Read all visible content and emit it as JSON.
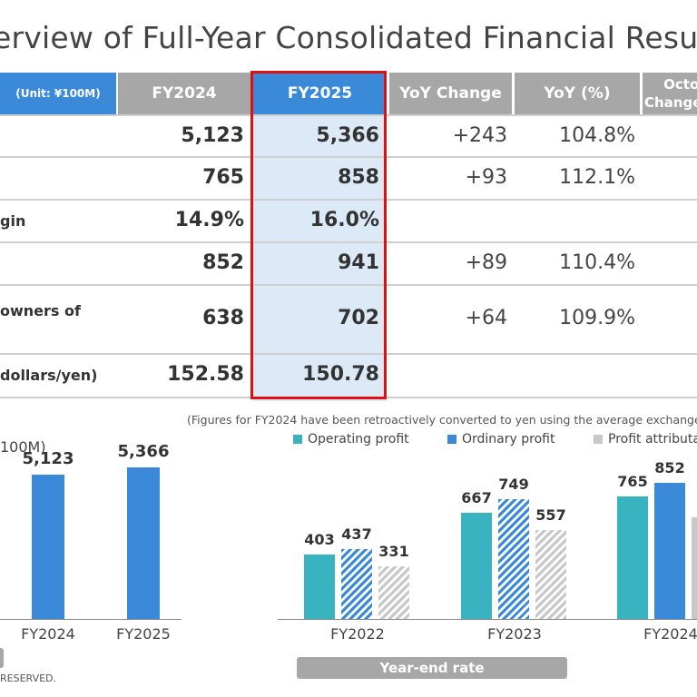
{
  "title": "erview of Full-Year Consolidated Financial Resu",
  "table": {
    "unit_header": "(Unit: ¥100M)",
    "col_fy2024": "FY2024",
    "col_fy2025": "FY2025",
    "col_yoy_change": "YoY Change",
    "col_yoy_pct": "YoY (%)",
    "col_oct_1": "Octo",
    "col_oct_2": "Change",
    "rows": [
      {
        "label": "",
        "fy2024": "5,123",
        "fy2025": "5,366",
        "change": "+243",
        "pct": "104.8%"
      },
      {
        "label": "",
        "fy2024": "765",
        "fy2025": "858",
        "change": "+93",
        "pct": "112.1%"
      },
      {
        "label": "gin",
        "fy2024": "14.9%",
        "fy2025": "16.0%",
        "change": "",
        "pct": ""
      },
      {
        "label": "",
        "fy2024": "852",
        "fy2025": "941",
        "change": "+89",
        "pct": "110.4%"
      },
      {
        "label": "owners of",
        "fy2024": "638",
        "fy2025": "702",
        "change": "+64",
        "pct": "109.9%"
      },
      {
        "label": "dollars/yen)",
        "fy2024": "152.58",
        "fy2025": "150.78",
        "change": "",
        "pct": ""
      }
    ]
  },
  "note": "(Figures for FY2024 have been retroactively converted to yen using the average exchange",
  "left_unit": "100M)",
  "copyright": "RESERVED.",
  "year_end_rate": "Year-end rate",
  "colors": {
    "teal": "#3ab3c0",
    "blue": "#3a8ad9",
    "gray": "#c8c8c8",
    "highlight": "#dce9f6",
    "red_border": "#e01010"
  },
  "chart_data": [
    {
      "type": "bar",
      "title": "",
      "categories": [
        "FY2024",
        "FY2025"
      ],
      "values": [
        5123,
        5366
      ],
      "value_labels": [
        "5,123",
        "5,366"
      ],
      "ylim": [
        0,
        5600
      ]
    },
    {
      "type": "bar",
      "title": "",
      "categories": [
        "FY2022",
        "FY2023",
        "FY2024"
      ],
      "legend": [
        "Operating profit",
        "Ordinary profit",
        "Profit attributa"
      ],
      "series": [
        {
          "name": "Operating profit",
          "values": [
            403,
            667,
            765
          ]
        },
        {
          "name": "Ordinary profit",
          "values": [
            437,
            749,
            852
          ]
        },
        {
          "name": "Profit attributa",
          "values": [
            331,
            557,
            638
          ]
        }
      ],
      "value_labels_visible": [
        [
          "403",
          "437",
          "331"
        ],
        [
          "667",
          "749",
          "557"
        ],
        [
          "765",
          "852",
          "6"
        ]
      ],
      "ylim": [
        0,
        1000
      ]
    }
  ]
}
